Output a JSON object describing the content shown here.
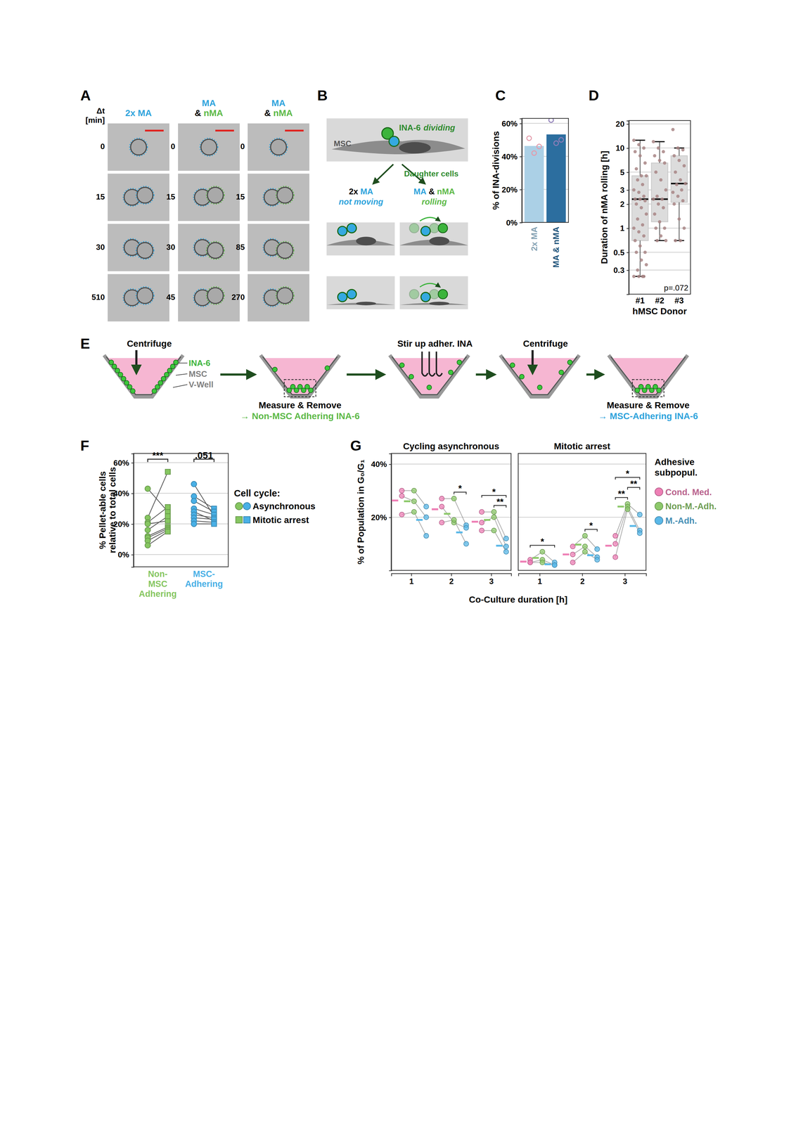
{
  "chart_data": [
    {
      "type": "bar",
      "panel_label": "C",
      "ylabel": "% of INA-divisions",
      "categories": [
        "2x MA",
        "MA & nMA"
      ],
      "values": [
        46.3,
        53.3
      ],
      "colors": [
        "#abd0e6",
        "#2c6e9f"
      ],
      "points": [
        [
          51,
          42,
          46
        ],
        [
          62,
          48,
          50
        ]
      ],
      "ylim": [
        0,
        63
      ],
      "yticks": [
        {
          "value": 0,
          "label": "0%"
        },
        {
          "value": 20,
          "label": "20%"
        },
        {
          "value": 40,
          "label": "40%"
        },
        {
          "value": 60,
          "label": "60%"
        }
      ],
      "grid": true
    },
    {
      "type": "box",
      "panel_label": "D",
      "ylabel": "Duration of nMA rolling [h]",
      "xlabel": "hMSC Donor",
      "categories": [
        "#1",
        "#2",
        "#3"
      ],
      "boxes": [
        {
          "whisker_low": 0.25,
          "q1": 0.7,
          "median": 2.3,
          "q3": 4.5,
          "whisker_high": 12.5
        },
        {
          "whisker_low": 0.7,
          "q1": 1.2,
          "median": 2.3,
          "q3": 6.5,
          "whisker_high": 12
        },
        {
          "whisker_low": 0.7,
          "q1": 2.1,
          "median": 3.6,
          "q3": 8,
          "whisker_high": 10
        }
      ],
      "points": [
        [
          12.5,
          11,
          10,
          9,
          8,
          6.5,
          5.5,
          4.5,
          4.5,
          4,
          3.5,
          3,
          2.8,
          2.5,
          2.3,
          2.3,
          2.2,
          2,
          1.8,
          1.5,
          1.3,
          1.1,
          1,
          0.9,
          0.8,
          0.7,
          0.6,
          0.5,
          0.5,
          0.4,
          0.35,
          0.3,
          0.25,
          0.25,
          0.25,
          0.25
        ],
        [
          12,
          10,
          9,
          8,
          7,
          6.5,
          5,
          4,
          3,
          2.5,
          2.3,
          2.3,
          2,
          1.8,
          1.5,
          1.2,
          1,
          1,
          0.8,
          0.7,
          0.7
        ],
        [
          17,
          10,
          9.5,
          8,
          7,
          6,
          5,
          4,
          3.6,
          3.5,
          3,
          2.8,
          2.5,
          2.2,
          2,
          1.3,
          1,
          0.7,
          0.7
        ]
      ],
      "annotations": [
        "p=.072"
      ],
      "log": "y",
      "ylim": [
        0.15,
        22
      ],
      "yticks": [
        0.3,
        0.5,
        1,
        2,
        3,
        5,
        10,
        20
      ],
      "grid": true
    },
    {
      "type": "scatter",
      "panel_label": "F",
      "ylabel": [
        "% Pellet-able cells",
        "relative to total cells"
      ],
      "categories": [
        "Non-MSC Adhering",
        "MSC-Adhering"
      ],
      "colors": [
        "#86c661",
        "#49b0e6"
      ],
      "legend_title": "Cell cycle:",
      "series": [
        {
          "name": "Asynchronous",
          "marker": "circle",
          "values": [
            [
              43,
              24,
              21,
              20,
              16,
              12,
              11,
              9,
              6
            ],
            [
              46,
              38,
              35,
              30,
              28,
              26,
              24,
              22,
              20
            ]
          ]
        },
        {
          "name": "Mitotic arrest",
          "marker": "square",
          "values": [
            [
              28,
              54,
              31,
              22,
              25,
              18,
              17,
              16,
              15
            ],
            [
              25,
              30,
              28,
              26,
              22,
              24,
              23,
              21,
              20
            ]
          ]
        }
      ],
      "annotations": [
        "***",
        ".051"
      ],
      "ylim": [
        -8,
        66
      ],
      "yticks": [
        {
          "value": 0,
          "label": "0%"
        },
        {
          "value": 20,
          "label": "20%"
        },
        {
          "value": 40,
          "label": "40%"
        },
        {
          "value": 60,
          "label": "60%"
        }
      ],
      "grid": true
    },
    {
      "type": "scatter",
      "panel_label": "G",
      "title": "Cycling asynchronous",
      "ylabel": "% of Population in G₀/G₁",
      "xlabel": "Co-Culture duration [h]",
      "x": [
        1,
        2,
        3
      ],
      "xlim": [
        0.5,
        3.5
      ],
      "xticks": [
        1,
        2,
        3
      ],
      "series": [
        {
          "color": "#ee7fb5",
          "values": [
            [
              30,
              28,
              21
            ],
            [
              27,
              24,
              18
            ],
            [
              22,
              18,
              15
            ]
          ],
          "means": [
            26.3,
            23,
            18.3
          ]
        },
        {
          "color": "#8dc96b",
          "values": [
            [
              30,
              26,
              22
            ],
            [
              27,
              18,
              19
            ],
            [
              22,
              20,
              15
            ]
          ],
          "means": [
            26,
            21.3,
            19
          ]
        },
        {
          "color": "#5ab8e8",
          "values": [
            [
              24,
              20,
              13
            ],
            [
              17,
              16,
              10
            ],
            [
              12,
              9,
              7
            ]
          ],
          "means": [
            19,
            14.3,
            9.3
          ]
        }
      ],
      "annotations": [
        {
          "text": "*",
          "x": 2,
          "between": [
            1,
            2
          ]
        },
        {
          "text": "**",
          "x": 3,
          "between": [
            1,
            2
          ]
        },
        {
          "text": "*",
          "x": 3,
          "between": [
            0,
            2
          ]
        }
      ],
      "ylim": [
        0,
        44
      ],
      "yticks": [
        {
          "value": 20,
          "label": "20%"
        },
        {
          "value": 40,
          "label": "40%"
        }
      ],
      "grid": true
    },
    {
      "type": "scatter",
      "title": "Mitotic arrest",
      "legend_title": [
        "Adhesive",
        "subpopul."
      ],
      "x": [
        1,
        2,
        3
      ],
      "xlim": [
        0.5,
        3.5
      ],
      "xticks": [
        1,
        2,
        3
      ],
      "series": [
        {
          "name": "Cond. Med.",
          "color": "#ee7fb5",
          "values": [
            [
              4,
              3,
              3
            ],
            [
              9,
              6,
              3
            ],
            [
              13,
              10,
              5
            ]
          ],
          "means": [
            3.3,
            6,
            9.3
          ]
        },
        {
          "name": "Non-M.-Adh.",
          "color": "#8dc96b",
          "values": [
            [
              7,
              4,
              3
            ],
            [
              13,
              9,
              7
            ],
            [
              25,
              24,
              23
            ]
          ],
          "means": [
            4.7,
            9.7,
            24
          ]
        },
        {
          "name": "M.-Adh.",
          "color": "#5ab8e8",
          "values": [
            [
              3,
              2,
              2
            ],
            [
              8,
              5,
              4
            ],
            [
              21,
              15,
              14
            ]
          ],
          "means": [
            2.3,
            5.7,
            16.7
          ]
        }
      ],
      "annotations": [
        {
          "text": "*",
          "x": 1,
          "between": [
            0,
            2
          ]
        },
        {
          "text": "*",
          "x": 2,
          "between": [
            1,
            2
          ]
        },
        {
          "text": "**",
          "x": 3,
          "between": [
            0,
            1
          ]
        },
        {
          "text": "**",
          "x": 3,
          "between": [
            1,
            2
          ]
        },
        {
          "text": "*",
          "x": 3,
          "between": [
            0,
            2
          ]
        }
      ],
      "ylim": [
        0,
        44
      ],
      "yticks": [
        20,
        40
      ],
      "grid": true,
      "tick_labels": "x"
    }
  ],
  "diagrams": {
    "A": {
      "label": "A",
      "time_header": [
        "Δt",
        "[min]"
      ],
      "columns": [
        {
          "header": [
            [
              {
                "text": "2x MA",
                "color": "#2ea3dc"
              }
            ]
          ],
          "times": [
            0,
            15,
            30,
            510
          ]
        },
        {
          "header": [
            [
              {
                "text": "MA",
                "color": "#2ea3dc"
              }
            ],
            [
              {
                "text": "& ",
                "color": "#000000"
              },
              {
                "text": "nMA",
                "color": "#5cb947"
              }
            ]
          ],
          "times": [
            0,
            15,
            30,
            45
          ]
        },
        {
          "header": [
            [
              {
                "text": "MA",
                "color": "#2ea3dc"
              }
            ],
            [
              {
                "text": "& ",
                "color": "#000000"
              },
              {
                "text": "nMA",
                "color": "#5cb947"
              }
            ]
          ],
          "times": [
            0,
            15,
            85,
            270
          ]
        }
      ]
    },
    "B": {
      "label": "B",
      "msc": "MSC",
      "cell_name": "INA-6",
      "cell_action": "dividing",
      "daughter_cells": "Daughter cells",
      "outcomes": [
        {
          "title": [
            {
              "text": "2x ",
              "color": "#000000"
            },
            {
              "text": "MA",
              "color": "#2ea3dc"
            }
          ],
          "subtitle": {
            "text": "not moving",
            "color": "#2ea3dc"
          }
        },
        {
          "title": [
            {
              "text": "MA",
              "color": "#2ea3dc"
            },
            {
              "text": " & ",
              "color": "#000000"
            },
            {
              "text": "nMA",
              "color": "#5cb947"
            }
          ],
          "subtitle": {
            "text": "rolling",
            "color": "#5cb947"
          }
        }
      ]
    },
    "E": {
      "label": "E",
      "legend": [
        {
          "text": "INA-6",
          "color": "#3cb43c"
        },
        {
          "text": "MSC",
          "color": "#808080"
        },
        {
          "text": "V-Well",
          "color": "#808080"
        }
      ],
      "wells": [
        {
          "action": "Centrifuge"
        },
        {
          "result": {
            "title": "Measure & Remove",
            "text": "→ Non-MSC Adhering INA-6",
            "color": "#5cb947"
          }
        },
        {
          "action": "Stir up adher. INA"
        },
        {
          "action": "Centrifuge"
        },
        {
          "result": {
            "title": "Measure & Remove",
            "text": "→ MSC-Adhering INA-6",
            "color": "#2ea3dc"
          }
        }
      ]
    }
  }
}
